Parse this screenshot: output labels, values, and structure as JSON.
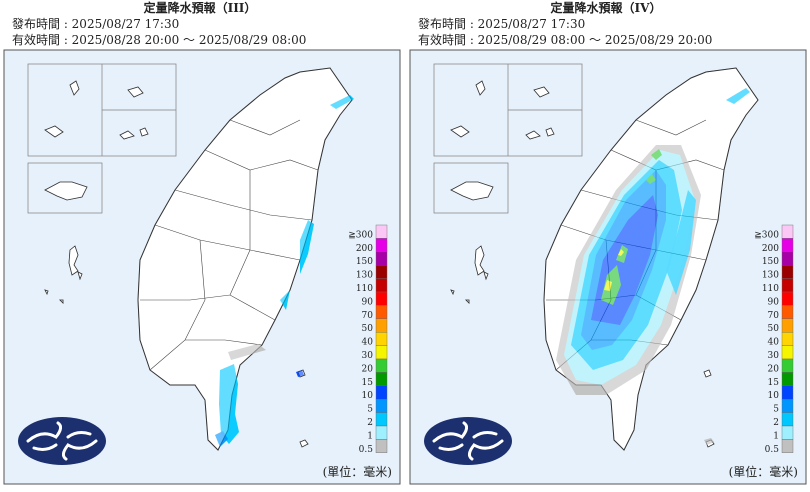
{
  "panels": [
    {
      "title": "定量降水預報（III）",
      "issued": "發布時間 : 2025/08/27 17:30",
      "valid": "有效時間 : 2025/08/28 20:00 ～ 2025/08/29 08:00"
    },
    {
      "title": "定量降水預報（IV）",
      "issued": "發布時間 : 2025/08/27 17:30",
      "valid": "有效時間 : 2025/08/29 08:00 ～ 2025/08/29 20:00"
    }
  ],
  "legend": {
    "items": [
      {
        "label": "≧300",
        "color": "#fbc8f5"
      },
      {
        "label": "200",
        "color": "#e600e6"
      },
      {
        "label": "150",
        "color": "#a600a6"
      },
      {
        "label": "130",
        "color": "#9a0000"
      },
      {
        "label": "110",
        "color": "#c40000"
      },
      {
        "label": "90",
        "color": "#ff0000"
      },
      {
        "label": "70",
        "color": "#ff5a00"
      },
      {
        "label": "50",
        "color": "#ffa000"
      },
      {
        "label": "40",
        "color": "#ffd400"
      },
      {
        "label": "30",
        "color": "#f5f500"
      },
      {
        "label": "20",
        "color": "#33cc33"
      },
      {
        "label": "15",
        "color": "#009900"
      },
      {
        "label": "10",
        "color": "#0044ff"
      },
      {
        "label": "5",
        "color": "#0096ff"
      },
      {
        "label": "2",
        "color": "#00c8ff"
      },
      {
        "label": "1",
        "color": "#9ef0ff"
      },
      {
        "label": "0.5",
        "color": "#c0c0c0"
      }
    ]
  },
  "unit": "(單位：毫米)"
}
